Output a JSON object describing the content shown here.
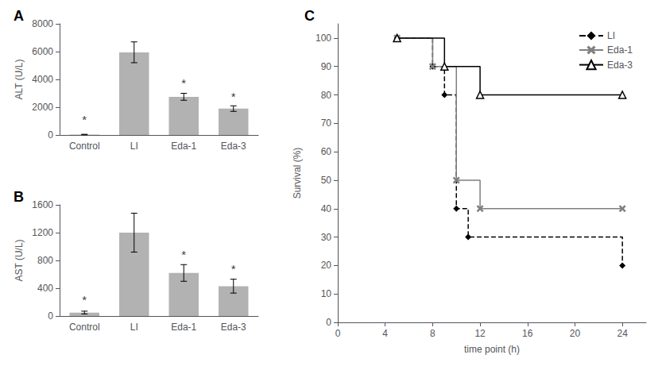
{
  "chart_data": [
    {
      "type": "bar",
      "title": "A",
      "categories": [
        "Control",
        "LI",
        "Eda-1",
        "Eda-3"
      ],
      "values": [
        30,
        5950,
        2750,
        1900
      ],
      "errors": [
        20,
        750,
        250,
        200
      ],
      "color": "#b2b2b2",
      "ylabel": "ALT (U/L)",
      "ylim": [
        0,
        8000
      ],
      "yticks": [
        0,
        2000,
        4000,
        6000,
        8000
      ],
      "grid": false,
      "annotations": [
        {
          "text": "*",
          "x": "Control",
          "y": 700
        },
        {
          "text": "*",
          "x": "Eda-1",
          "y": 3300
        },
        {
          "text": "*",
          "x": "Eda-3",
          "y": 2350
        }
      ]
    },
    {
      "type": "bar",
      "title": "B",
      "categories": [
        "Control",
        "LI",
        "Eda-1",
        "Eda-3"
      ],
      "values": [
        50,
        1200,
        620,
        430
      ],
      "errors": [
        20,
        280,
        120,
        100
      ],
      "color": "#b2b2b2",
      "ylabel": "AST (U/L)",
      "ylim": [
        0,
        1600
      ],
      "yticks": [
        0,
        400,
        800,
        1200,
        1600
      ],
      "grid": false,
      "annotations": [
        {
          "text": "*",
          "x": "Control",
          "y": 150
        },
        {
          "text": "*",
          "x": "Eda-1",
          "y": 800
        },
        {
          "text": "*",
          "x": "Eda-3",
          "y": 600
        }
      ]
    },
    {
      "type": "step",
      "title": "C",
      "xlabel": "time point (h)",
      "ylabel": "Survival (%)",
      "xlim": [
        0,
        26
      ],
      "xticks": [
        0,
        4,
        8,
        12,
        16,
        20,
        24
      ],
      "ylim": [
        0,
        105
      ],
      "yticks": [
        0,
        10,
        20,
        30,
        40,
        50,
        60,
        70,
        80,
        90,
        100
      ],
      "grid": false,
      "legend": "upper right",
      "series": [
        {
          "name": "LI",
          "color": "black",
          "line_style": "dashed",
          "marker": "diamond",
          "x": [
            5,
            8,
            9,
            10,
            11,
            24
          ],
          "values": [
            100,
            90,
            80,
            40,
            30,
            20
          ]
        },
        {
          "name": "Eda-1",
          "color": "gray",
          "line_style": "solid",
          "marker": "x",
          "x": [
            5,
            8,
            10,
            12,
            24
          ],
          "values": [
            100,
            90,
            50,
            40,
            40
          ]
        },
        {
          "name": "Eda-3",
          "color": "black",
          "line_style": "solid",
          "marker": "open_triangle",
          "x": [
            5,
            9,
            12,
            24
          ],
          "values": [
            100,
            90,
            80,
            80
          ]
        }
      ]
    }
  ]
}
